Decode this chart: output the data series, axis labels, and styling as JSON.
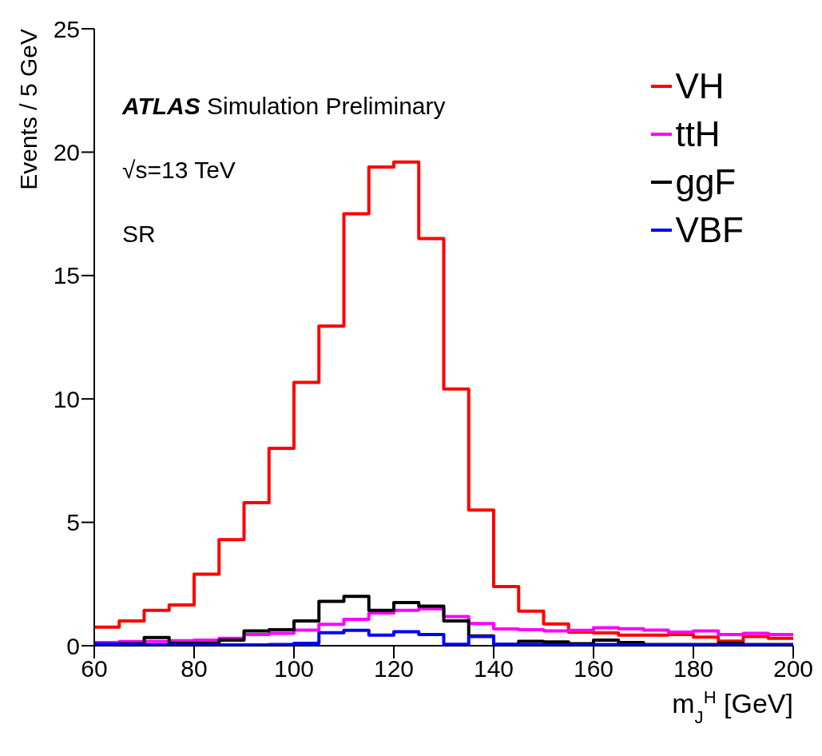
{
  "chart_data": {
    "type": "histogram",
    "xlabel": "m$_{J}$$^{H}$ [GeV]",
    "ylabel": "Events / 5 GeV",
    "annotations": [
      "ATLAS Simulation Preliminary",
      "√s=13 TeV",
      "SR"
    ],
    "bins": [
      60,
      65,
      70,
      75,
      80,
      85,
      90,
      95,
      100,
      105,
      110,
      115,
      120,
      125,
      130,
      135,
      140,
      145,
      150,
      155,
      160,
      165,
      170,
      175,
      180,
      185,
      190,
      195,
      200
    ],
    "series": [
      {
        "name": "VH",
        "color": "#ff0000",
        "values": [
          0.75,
          1.0,
          1.43,
          1.65,
          2.9,
          4.3,
          5.8,
          8.0,
          10.67,
          12.95,
          17.5,
          19.4,
          19.6,
          16.5,
          10.4,
          5.5,
          2.4,
          1.4,
          0.88,
          0.55,
          0.52,
          0.43,
          0.43,
          0.45,
          0.35,
          0.19,
          0.37,
          0.3
        ]
      },
      {
        "name": "ttH",
        "color": "#ff00ff",
        "values": [
          0.13,
          0.17,
          0.17,
          0.2,
          0.23,
          0.3,
          0.45,
          0.5,
          0.63,
          0.87,
          1.07,
          1.33,
          1.43,
          1.5,
          1.18,
          0.9,
          0.68,
          0.65,
          0.6,
          0.62,
          0.73,
          0.69,
          0.63,
          0.55,
          0.6,
          0.45,
          0.5,
          0.45
        ]
      },
      {
        "name": "ggF",
        "color": "#000000",
        "values": [
          0.05,
          0.08,
          0.33,
          0.1,
          0.1,
          0.23,
          0.6,
          0.65,
          1.0,
          1.8,
          2.0,
          1.43,
          1.75,
          1.6,
          1.0,
          0.4,
          0.05,
          0.18,
          0.15,
          0.08,
          0.23,
          0.13,
          0.05,
          0.05,
          0.05,
          0.1,
          0.05,
          0.05
        ]
      },
      {
        "name": "VBF",
        "color": "#0000ff",
        "values": [
          0.07,
          0.05,
          0.03,
          0.03,
          0.03,
          0.03,
          0.03,
          0.05,
          0.1,
          0.53,
          0.62,
          0.43,
          0.57,
          0.45,
          0.06,
          0.37,
          0.06,
          0.05,
          0.03,
          0.03,
          0.05,
          0.03,
          0.03,
          0.03,
          0.03,
          0.03,
          0.03,
          0.03
        ]
      }
    ],
    "xlim": [
      60,
      200
    ],
    "xticks": [
      60,
      80,
      100,
      120,
      140,
      160,
      180,
      200
    ],
    "ylim": [
      0,
      25
    ],
    "yticks": [
      0,
      5,
      10,
      15,
      20,
      25
    ],
    "legend": "top right"
  }
}
